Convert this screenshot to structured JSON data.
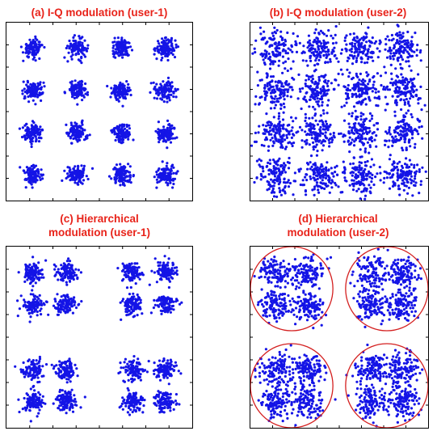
{
  "colors": {
    "title": "#e8231a",
    "points": "#1414e6",
    "circle": "#d42020",
    "frame": "#000000"
  },
  "chart_data": [
    {
      "type": "scatter",
      "title": "(a) I-Q modulation (user-1)",
      "xlabel": "",
      "ylabel": "",
      "xlim": [
        -4.2,
        4.2
      ],
      "ylim": [
        -4.2,
        4.2
      ],
      "grid": false,
      "constellation": "16-QAM",
      "clusters": [
        {
          "x": -3,
          "y": 3
        },
        {
          "x": -1,
          "y": 3
        },
        {
          "x": 1,
          "y": 3
        },
        {
          "x": 3,
          "y": 3
        },
        {
          "x": -3,
          "y": 1
        },
        {
          "x": -1,
          "y": 1
        },
        {
          "x": 1,
          "y": 1
        },
        {
          "x": 3,
          "y": 1
        },
        {
          "x": -3,
          "y": -1
        },
        {
          "x": -1,
          "y": -1
        },
        {
          "x": 1,
          "y": -1
        },
        {
          "x": 3,
          "y": -1
        },
        {
          "x": -3,
          "y": -3
        },
        {
          "x": -1,
          "y": -3
        },
        {
          "x": 1,
          "y": -3
        },
        {
          "x": 3,
          "y": -3
        }
      ],
      "noise_std": 0.22,
      "points_per_cluster": 110
    },
    {
      "type": "scatter",
      "title": "(b) I-Q modulation (user-2)",
      "xlabel": "",
      "ylabel": "",
      "xlim": [
        -4.2,
        4.2
      ],
      "ylim": [
        -4.2,
        4.2
      ],
      "grid": false,
      "constellation": "16-QAM",
      "clusters": [
        {
          "x": -3,
          "y": 3
        },
        {
          "x": -1,
          "y": 3
        },
        {
          "x": 1,
          "y": 3
        },
        {
          "x": 3,
          "y": 3
        },
        {
          "x": -3,
          "y": 1
        },
        {
          "x": -1,
          "y": 1
        },
        {
          "x": 1,
          "y": 1
        },
        {
          "x": 3,
          "y": 1
        },
        {
          "x": -3,
          "y": -1
        },
        {
          "x": -1,
          "y": -1
        },
        {
          "x": 1,
          "y": -1
        },
        {
          "x": 3,
          "y": -1
        },
        {
          "x": -3,
          "y": -3
        },
        {
          "x": -1,
          "y": -3
        },
        {
          "x": 1,
          "y": -3
        },
        {
          "x": 3,
          "y": -3
        }
      ],
      "noise_std": 0.42,
      "points_per_cluster": 130
    },
    {
      "type": "scatter",
      "title": "(c) Hierarchical\nmodulation (user-1)",
      "xlabel": "",
      "ylabel": "",
      "xlim": [
        -5.6,
        5.6
      ],
      "ylim": [
        -5.6,
        5.6
      ],
      "grid": false,
      "constellation": "hierarchical 16-QAM",
      "clusters": [
        {
          "x": -4,
          "y": 4
        },
        {
          "x": -2,
          "y": 4
        },
        {
          "x": 2,
          "y": 4
        },
        {
          "x": 4,
          "y": 4
        },
        {
          "x": -4,
          "y": 2
        },
        {
          "x": -2,
          "y": 2
        },
        {
          "x": 2,
          "y": 2
        },
        {
          "x": 4,
          "y": 2
        },
        {
          "x": -4,
          "y": -2
        },
        {
          "x": -2,
          "y": -2
        },
        {
          "x": 2,
          "y": -2
        },
        {
          "x": 4,
          "y": -2
        },
        {
          "x": -4,
          "y": -4
        },
        {
          "x": -2,
          "y": -4
        },
        {
          "x": 2,
          "y": -4
        },
        {
          "x": 4,
          "y": -4
        }
      ],
      "noise_std": 0.32,
      "points_per_cluster": 110
    },
    {
      "type": "scatter",
      "title": "(d) Hierarchical\nmodulation (user-2)",
      "xlabel": "",
      "ylabel": "",
      "xlim": [
        -5.6,
        5.6
      ],
      "ylim": [
        -5.6,
        5.6
      ],
      "grid": false,
      "constellation": "hierarchical 16-QAM",
      "clusters": [
        {
          "x": -4,
          "y": 4
        },
        {
          "x": -2,
          "y": 4
        },
        {
          "x": 2,
          "y": 4
        },
        {
          "x": 4,
          "y": 4
        },
        {
          "x": -4,
          "y": 2
        },
        {
          "x": -2,
          "y": 2
        },
        {
          "x": 2,
          "y": 2
        },
        {
          "x": 4,
          "y": 2
        },
        {
          "x": -4,
          "y": -2
        },
        {
          "x": -2,
          "y": -2
        },
        {
          "x": 2,
          "y": -2
        },
        {
          "x": 4,
          "y": -2
        },
        {
          "x": -4,
          "y": -4
        },
        {
          "x": -2,
          "y": -4
        },
        {
          "x": 2,
          "y": -4
        },
        {
          "x": 4,
          "y": -4
        }
      ],
      "noise_std": 0.5,
      "points_per_cluster": 120,
      "circles": [
        {
          "cx": -3,
          "cy": 3,
          "r": 2.6
        },
        {
          "cx": 3,
          "cy": 3,
          "r": 2.6
        },
        {
          "cx": -3,
          "cy": -3,
          "r": 2.6
        },
        {
          "cx": 3,
          "cy": -3,
          "r": 2.6
        }
      ]
    }
  ]
}
